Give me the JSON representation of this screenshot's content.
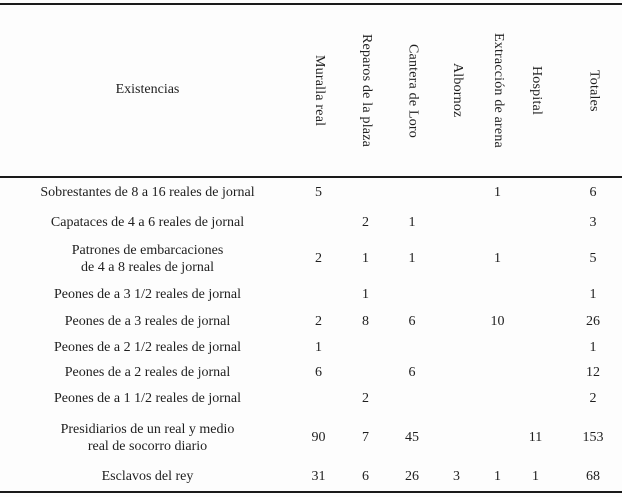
{
  "table": {
    "corner_header": "Existencias",
    "columns": [
      "Muralla real",
      "Reparos de la plaza",
      "Cantera de Loro",
      "Albornoz",
      "Extracción de arena",
      "Hospital",
      "Totales"
    ],
    "rows": [
      {
        "label": "Sobrestantes de 8 a 16 reales de jornal",
        "values": [
          "5",
          "",
          "",
          "",
          "1",
          "",
          "6"
        ]
      },
      {
        "label": "Capataces de 4 a 6 reales de jornal",
        "values": [
          "",
          "2",
          "1",
          "",
          "",
          "",
          "3"
        ]
      },
      {
        "label": "Patrones de embarcaciones\nde 4 a 8 reales de jornal",
        "values": [
          "2",
          "1",
          "1",
          "",
          "1",
          "",
          "5"
        ]
      },
      {
        "label": "Peones de a 3 1/2 reales de jornal",
        "values": [
          "",
          "1",
          "",
          "",
          "",
          "",
          "1"
        ]
      },
      {
        "label": "Peones de a 3 reales de jornal",
        "values": [
          "2",
          "8",
          "6",
          "",
          "10",
          "",
          "26"
        ]
      },
      {
        "label": "Peones de a 2 1/2 reales de jornal",
        "values": [
          "1",
          "",
          "",
          "",
          "",
          "",
          "1"
        ]
      },
      {
        "label": "Peones de a 2 reales de jornal",
        "values": [
          "6",
          "",
          "6",
          "",
          "",
          "",
          "12"
        ]
      },
      {
        "label": "Peones de a 1 1/2 reales de jornal",
        "values": [
          "",
          "2",
          "",
          "",
          "",
          "",
          "2"
        ]
      },
      {
        "label": "Presidiarios de un real y medio\nreal de socorro diario",
        "values": [
          "90",
          "7",
          "45",
          "",
          "",
          "11",
          "153"
        ]
      },
      {
        "label": "Esclavos del rey",
        "values": [
          "31",
          "6",
          "26",
          "3",
          "1",
          "1",
          "68"
        ]
      }
    ],
    "colors": {
      "text": "#1e1e1e",
      "rule": "#1a1a1a",
      "background": "#fdfdfd"
    }
  }
}
